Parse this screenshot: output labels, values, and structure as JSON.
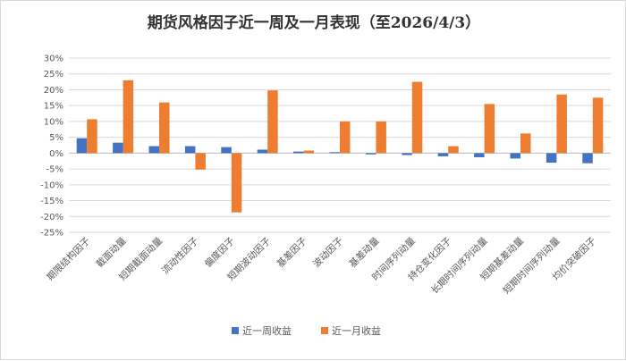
{
  "chart_data": {
    "type": "bar",
    "title": "期货风格因子近一周及一月表现（至2026/4/3）",
    "categories": [
      "期限结构因子",
      "截面动量",
      "短期截面动量",
      "流动性因子",
      "偏度因子",
      "短期波动因子",
      "基差因子",
      "波动因子",
      "基差动量",
      "时间序列动量",
      "持仓变化因子",
      "长期时间序列动量",
      "短期基差动量",
      "短期时间序列动量",
      "均价突破因子"
    ],
    "series": [
      {
        "name": "近一周收益",
        "color": "#4472C4",
        "values": [
          4.7,
          3.3,
          2.2,
          2.2,
          1.9,
          1.1,
          0.5,
          0.3,
          -0.4,
          -0.6,
          -1.0,
          -1.3,
          -1.7,
          -3.0,
          -3.2
        ]
      },
      {
        "name": "近一月收益",
        "color": "#ED7D31",
        "values": [
          10.7,
          23.0,
          16.0,
          -5.2,
          -18.7,
          19.8,
          0.8,
          10.0,
          10.0,
          22.5,
          2.2,
          15.5,
          6.2,
          18.5,
          17.5
        ]
      }
    ],
    "y_ticks": [
      "30%",
      "25%",
      "20%",
      "15%",
      "10%",
      "5%",
      "0%",
      "-5%",
      "-10%",
      "-15%",
      "-20%",
      "-25%"
    ],
    "ylim": [
      -25,
      30
    ],
    "ylabel": "",
    "xlabel": "",
    "grid": true,
    "legend": "bottom"
  }
}
